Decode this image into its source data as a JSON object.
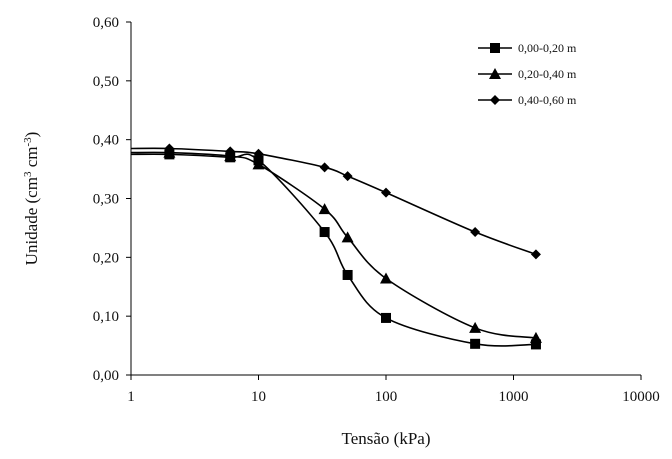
{
  "chart_data": {
    "type": "line",
    "xscale": "log",
    "xlim": [
      1,
      10000
    ],
    "ylim": [
      0,
      0.6
    ],
    "xlabel": "Tensão (kPa)",
    "ylabel_main": "Unidade  (cm",
    "ylabel_sup1": "3",
    "ylabel_mid": " cm",
    "ylabel_sup2": "-3",
    "ylabel_end": ")",
    "x_ticks": [
      {
        "value": 1,
        "label": "1"
      },
      {
        "value": 10,
        "label": "10"
      },
      {
        "value": 100,
        "label": "100"
      },
      {
        "value": 1000,
        "label": "1000"
      },
      {
        "value": 10000,
        "label": "10000"
      }
    ],
    "y_ticks": [
      {
        "value": 0,
        "label": "0,00"
      },
      {
        "value": 0.1,
        "label": "0,10"
      },
      {
        "value": 0.2,
        "label": "0,20"
      },
      {
        "value": 0.3,
        "label": "0,30"
      },
      {
        "value": 0.4,
        "label": "0,40"
      },
      {
        "value": 0.5,
        "label": "0,50"
      },
      {
        "value": 0.6,
        "label": "0,60"
      }
    ],
    "grid": false,
    "legend_position": "top-right",
    "series": [
      {
        "name": "0,00-0,20 m",
        "marker": "square",
        "color": "#000000",
        "x": [
          1,
          2,
          6,
          10,
          33,
          50,
          100,
          500,
          1500
        ],
        "y": [
          0.375,
          0.375,
          0.37,
          0.365,
          0.243,
          0.17,
          0.097,
          0.053,
          0.052
        ]
      },
      {
        "name": "0,20-0,40 m",
        "marker": "triangle",
        "color": "#000000",
        "x": [
          1,
          2,
          6,
          10,
          33,
          50,
          100,
          500,
          1500
        ],
        "y": [
          0.378,
          0.378,
          0.372,
          0.358,
          0.282,
          0.234,
          0.164,
          0.08,
          0.063
        ]
      },
      {
        "name": "0,40-0,60 m",
        "marker": "diamond",
        "color": "#000000",
        "x": [
          1,
          2,
          6,
          10,
          33,
          50,
          100,
          500,
          1500
        ],
        "y": [
          0.385,
          0.385,
          0.38,
          0.376,
          0.353,
          0.338,
          0.31,
          0.243,
          0.205
        ]
      }
    ]
  }
}
